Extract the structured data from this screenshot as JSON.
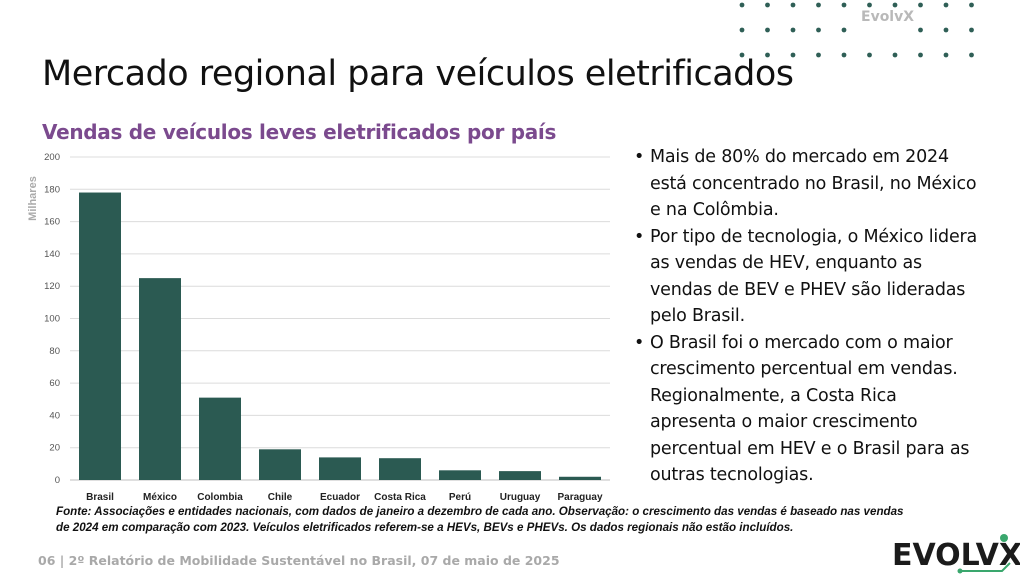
{
  "header": {
    "brand": "EvolvX",
    "title": "Mercado regional para veículos eletrificados"
  },
  "bullets": [
    "Mais de 80% do mercado em 2024 está concentrado no Brasil, no México e na Colômbia.",
    "Por tipo de tecnologia, o México lidera as vendas de HEV, enquanto as vendas de BEV e PHEV são lideradas pelo Brasil.",
    "O Brasil foi o mercado com o maior crescimento percentual em vendas. Regionalmente, a Costa Rica apresenta o maior crescimento percentual em HEV e o Brasil para as outras tecnologias."
  ],
  "note": "Fonte: Associações e entidades nacionais, com dados de janeiro a dezembro de cada ano. Observação: o crescimento das vendas é baseado nas vendas de 2024 em comparação com 2023. Veículos eletrificados referem-se a HEVs, BEVs e PHEVs. Os dados regionais não estão incluídos.",
  "footer": {
    "text": "06 | 2º Relatório de Mobilidade Sustentável no Brasil, 07 de maio de 2025"
  },
  "logo": {
    "text": "EVOLVX"
  },
  "colors": {
    "bar": "#2b5a52",
    "title_accent": "#7b4a8e",
    "dots": "#2f5f56",
    "logo_green": "#3aa76d"
  },
  "chart_data": {
    "type": "bar",
    "title": "Vendas de veículos leves eletrificados por país",
    "ylabel": "Milhares",
    "xlabel": "",
    "ylim": [
      0,
      200
    ],
    "yticks": [
      0,
      20,
      40,
      60,
      80,
      100,
      120,
      140,
      160,
      180,
      200
    ],
    "grid": true,
    "categories": [
      "Brasil",
      "México",
      "Colombia",
      "Chile",
      "Ecuador",
      "Costa Rica",
      "Perú",
      "Uruguay",
      "Paraguay"
    ],
    "values": [
      178,
      125,
      51,
      19,
      14,
      13.5,
      6,
      5.5,
      2
    ]
  }
}
